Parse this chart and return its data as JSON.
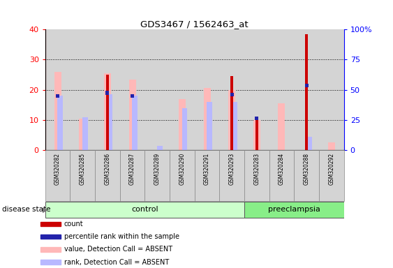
{
  "title": "GDS3467 / 1562463_at",
  "samples": [
    "GSM320282",
    "GSM320285",
    "GSM320286",
    "GSM320287",
    "GSM320289",
    "GSM320290",
    "GSM320291",
    "GSM320293",
    "GSM320283",
    "GSM320284",
    "GSM320288",
    "GSM320292"
  ],
  "groups": [
    "control",
    "control",
    "control",
    "control",
    "control",
    "control",
    "control",
    "control",
    "preeclampsia",
    "preeclampsia",
    "preeclampsia",
    "preeclampsia"
  ],
  "count": [
    0,
    0,
    25,
    0,
    0,
    0,
    0,
    24.5,
    10,
    0,
    38.5,
    0
  ],
  "percentile": [
    18,
    0,
    19,
    18,
    0,
    0,
    0,
    18.5,
    10.5,
    0,
    21.5,
    0
  ],
  "value_absent": [
    26,
    10.5,
    25.5,
    23.5,
    0,
    17,
    20.5,
    20,
    10,
    15.5,
    0,
    2.5
  ],
  "rank_absent": [
    18,
    11,
    18.5,
    18,
    1.5,
    14,
    16,
    16,
    0,
    0,
    4.5,
    0
  ],
  "ylim": [
    0,
    40
  ],
  "y2lim": [
    0,
    100
  ],
  "yticks": [
    0,
    10,
    20,
    30,
    40
  ],
  "y2ticks": [
    0,
    25,
    50,
    75,
    100
  ],
  "color_count": "#cc0000",
  "color_percentile": "#2222aa",
  "color_value_absent": "#ffb8b8",
  "color_rank_absent": "#b8b8ff",
  "color_control_bg": "#ccffcc",
  "color_preeclampsia_bg": "#88ee88",
  "color_sample_bg": "#d4d4d4",
  "disease_state_label": "disease state",
  "legend_items": [
    {
      "label": "count",
      "color": "#cc0000"
    },
    {
      "label": "percentile rank within the sample",
      "color": "#2222aa"
    },
    {
      "label": "value, Detection Call = ABSENT",
      "color": "#ffb8b8"
    },
    {
      "label": "rank, Detection Call = ABSENT",
      "color": "#b8b8ff"
    }
  ]
}
